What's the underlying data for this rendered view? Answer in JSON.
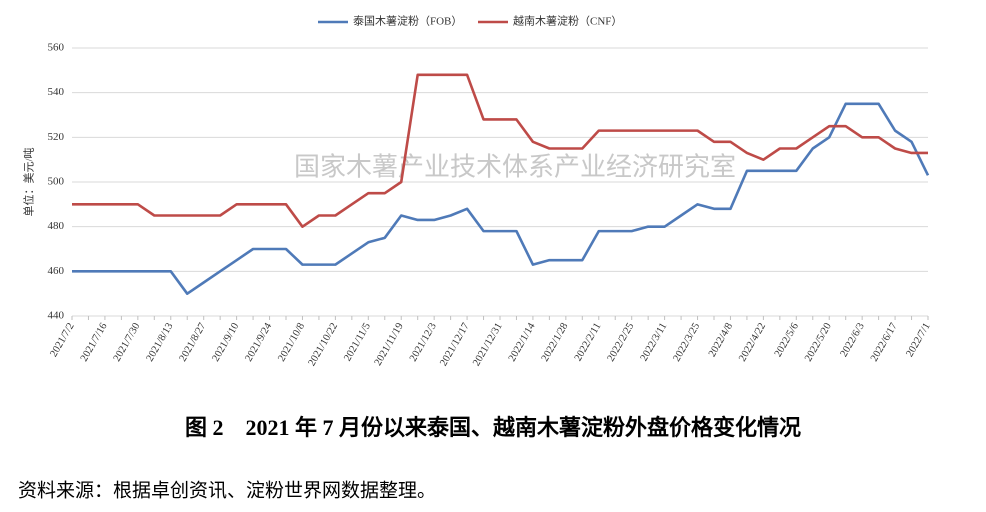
{
  "chart_data": {
    "type": "line",
    "y_label": "单位：美元/吨",
    "watermark": "国家木薯产业技术体系产业经济研究室",
    "caption": "图 2　2021 年 7 月份以来泰国、越南木薯淀粉外盘价格变化情况",
    "source": "资料来源：根据卓创资讯、淀粉世界网数据整理。",
    "categories": [
      "2021/7/2",
      null,
      "2021/7/16",
      null,
      "2021/7/30",
      null,
      "2021/8/13",
      null,
      "2021/8/27",
      null,
      "2021/9/10",
      null,
      "2021/9/24",
      null,
      "2021/10/8",
      null,
      "2021/10/22",
      null,
      "2021/11/5",
      null,
      "2021/11/19",
      null,
      "2021/12/3",
      null,
      "2021/12/17",
      null,
      "2021/12/31",
      null,
      "2022/1/14",
      null,
      "2022/1/28",
      null,
      "2022/2/11",
      null,
      "2022/2/25",
      null,
      "2022/3/11",
      null,
      "2022/3/25",
      null,
      "2022/4/8",
      null,
      "2022/4/22",
      null,
      "2022/5/6",
      null,
      "2022/5/20",
      null,
      "2022/6/3",
      null,
      "2022/6/17",
      null,
      "2022/7/1"
    ],
    "series": [
      {
        "name": "泰国木薯淀粉（FOB）",
        "color": "#4f7ab8",
        "values": [
          460,
          460,
          460,
          460,
          460,
          460,
          460,
          450,
          455,
          460,
          465,
          470,
          470,
          470,
          463,
          463,
          463,
          468,
          473,
          475,
          485,
          483,
          483,
          485,
          488,
          478,
          478,
          478,
          463,
          465,
          465,
          465,
          478,
          478,
          478,
          480,
          480,
          485,
          490,
          488,
          488,
          505,
          505,
          505,
          505,
          515,
          520,
          535,
          535,
          535,
          523,
          518,
          503
        ]
      },
      {
        "name": "越南木薯淀粉（CNF）",
        "color": "#be4b48",
        "values": [
          490,
          490,
          490,
          490,
          490,
          485,
          485,
          485,
          485,
          485,
          490,
          490,
          490,
          490,
          480,
          485,
          485,
          490,
          495,
          495,
          500,
          548,
          548,
          548,
          548,
          528,
          528,
          528,
          518,
          515,
          515,
          515,
          523,
          523,
          523,
          523,
          523,
          523,
          523,
          518,
          518,
          513,
          510,
          515,
          515,
          520,
          525,
          525,
          520,
          520,
          515,
          513,
          513
        ]
      }
    ],
    "ylim": [
      440,
      560
    ],
    "yticks": [
      440,
      460,
      480,
      500,
      520,
      540,
      560
    ],
    "grid": true
  }
}
